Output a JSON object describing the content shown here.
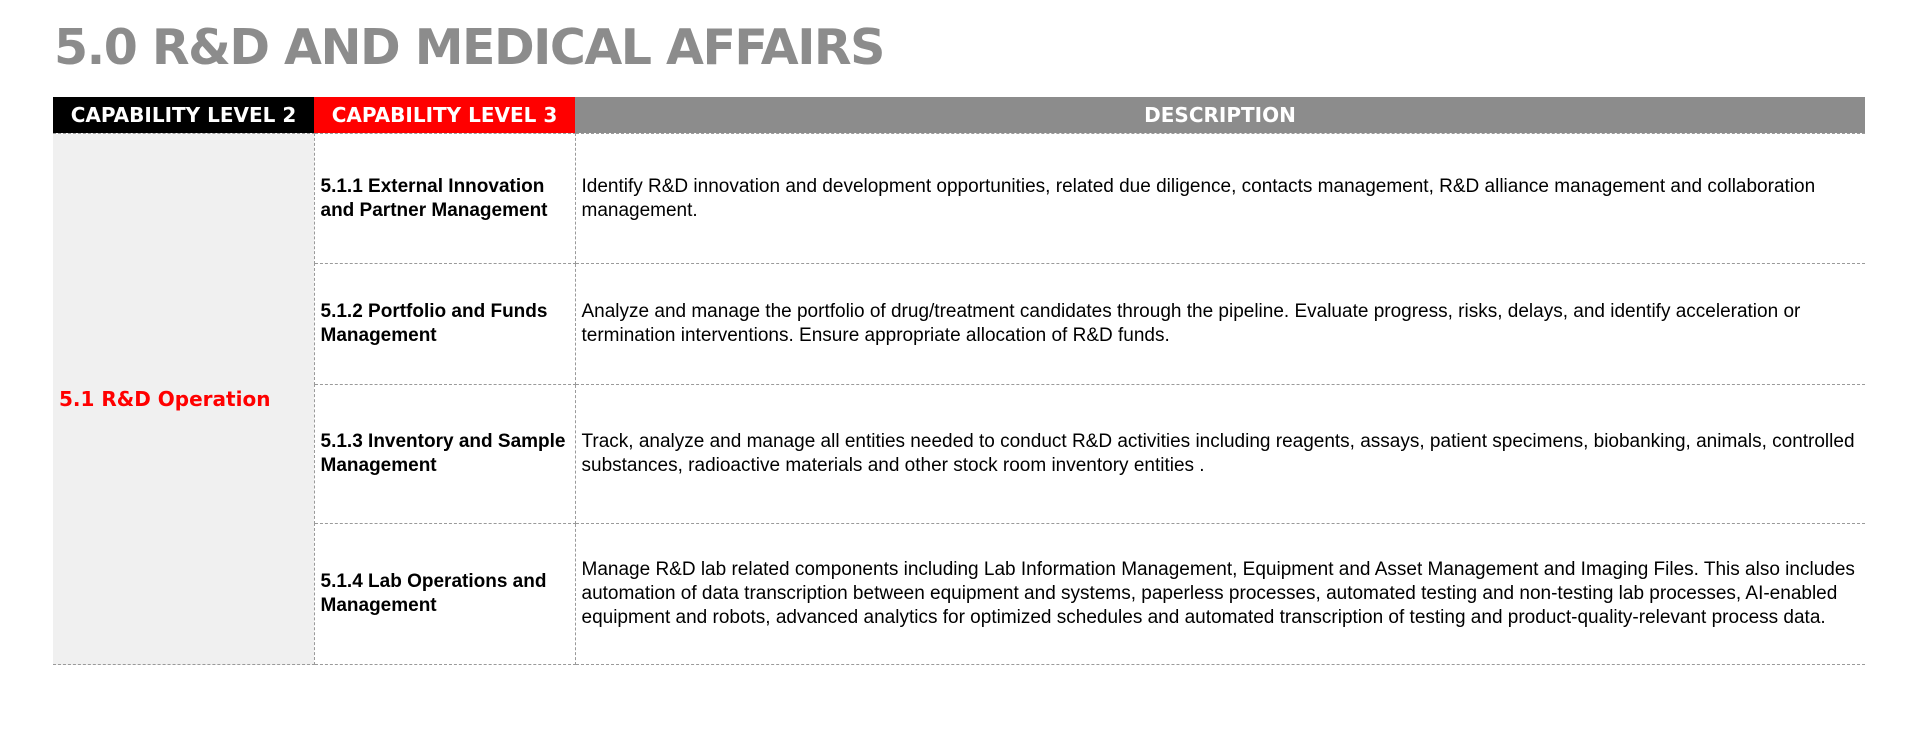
{
  "title": "5.0 R&D AND MEDICAL AFFAIRS",
  "colors": {
    "title": "#8c8c8c",
    "level2_header_bg": "#000000",
    "level3_header_bg": "#ff0000",
    "description_header_bg": "#8c8c8c",
    "level2_cell_bg": "#f0f0f0",
    "level2_text": "#ff0000",
    "border": "#9a9a9a"
  },
  "table": {
    "headers": {
      "level2": "CAPABILITY LEVEL 2",
      "level3": "CAPABILITY LEVEL 3",
      "description": "DESCRIPTION"
    },
    "level2": "5.1 R&D Operation",
    "rows": [
      {
        "level3": "5.1.1 External Innovation and Partner Management",
        "description": "Identify  R&D innovation  and development opportunities, related due diligence, contacts management, R&D alliance management and collaboration management."
      },
      {
        "level3": "5.1.2 Portfolio and Funds Management",
        "description": "Analyze and manage the portfolio of drug/treatment candidates through the pipeline. Evaluate progress, risks, delays, and identify acceleration or termination interventions. Ensure appropriate allocation of R&D funds."
      },
      {
        "level3": "5.1.3 Inventory and Sample Management",
        "description": "Track, analyze and manage all entities needed to conduct R&D activities including reagents, assays, patient specimens, biobanking, animals, controlled substances, radioactive materials and other stock room inventory entities ."
      },
      {
        "level3": "5.1.4 Lab Operations and Management",
        "description": "Manage R&D lab related components including Lab Information Management, Equipment and Asset Management and Imaging Files. This also includes automation of data transcription between equipment and systems, paperless processes, automated testing and non-testing lab processes, AI-enabled equipment and robots, advanced analytics for optimized schedules and automated transcription of testing and product-quality-relevant process data."
      }
    ]
  }
}
